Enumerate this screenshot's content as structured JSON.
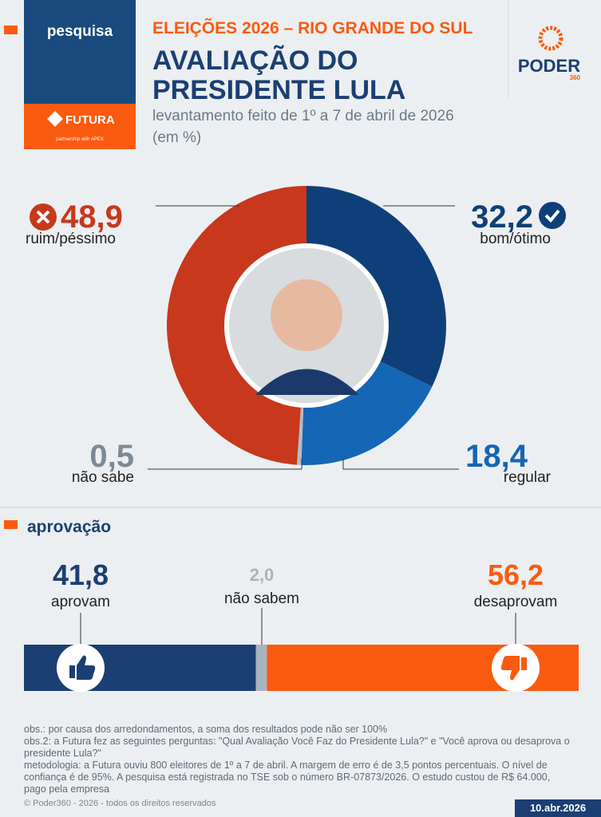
{
  "header": {
    "tag": "pesquisa",
    "sponsor": "FUTURA",
    "partner": "partnership with APEX",
    "kicker": "ELEIÇÕES 2026 – RIO GRANDE DO SUL",
    "title": [
      "AVALIAÇÃO DO",
      "PRESIDENTE LULA"
    ],
    "subtitle": "levantamento feito de 1º a 7 de abril de 2026 (em %)",
    "logo": "PODER",
    "logo_sub": "360"
  },
  "chart_data": [
    {
      "type": "pie",
      "donut": true,
      "categories": [
        "bom/ótimo",
        "regular",
        "não sabe",
        "ruim/péssimo"
      ],
      "values": [
        32.2,
        18.4,
        0.5,
        48.9
      ],
      "value_labels": [
        "32,2",
        "18,4",
        "0,5",
        "48,9"
      ],
      "colors": [
        "#0f3f78",
        "#1566b5",
        "#b3bcc4",
        "#c8381c"
      ]
    },
    {
      "type": "stacked-bar",
      "title": "aprovação",
      "categories": [
        "aprovam",
        "não sabem",
        "desaprovam"
      ],
      "values": [
        41.8,
        2.0,
        56.2
      ],
      "value_labels": [
        "41,8",
        "2,0",
        "56,2"
      ],
      "colors": [
        "#1b3f73",
        "#a9b4be",
        "#fa5a0f"
      ]
    }
  ],
  "notes": [
    "obs.: por causa dos arredondamentos, a soma dos resultados pode não ser 100%",
    "obs.2: a Futura fez as seguintes perguntas: \"Qual Avaliação Você Faz do Presidente Lula?\" e \"Você aprova ou desaprova o presidente Lula?\"",
    "metodologia: a Futura ouviu 800 eleitores de 1º a 7 de abril. A margem de erro é de 3,5 pontos percentuais. O nível de confiança é de 95%. A pesquisa está registrada no TSE sob o número BR-07873/2026. O estudo custou de R$ 64.000, pago pela empresa"
  ],
  "copyright": "© Poder360 - 2026 - todos os direitos reservados",
  "date": "10.abr.2026"
}
